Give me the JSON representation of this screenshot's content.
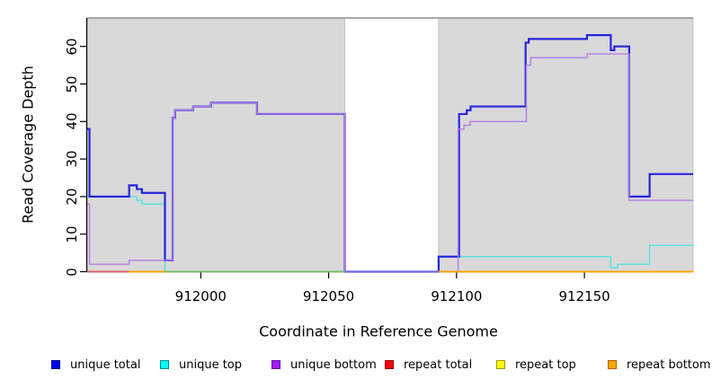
{
  "figure": {
    "background": "#ffffff",
    "panel_fill": "#d9d9d9",
    "panel_edge": "#c4c4c4",
    "panel_top_border": "#8f8f8f",
    "axis_color": "#000000"
  },
  "chart_data": {
    "type": "line",
    "title": "",
    "xlabel": "Coordinate in Reference Genome",
    "ylabel": "Read Coverage Depth",
    "xlim": [
      911955.6,
      912192.5
    ],
    "ylim": [
      0,
      67.5
    ],
    "x_ticks": [
      912000,
      912050,
      912100,
      912150
    ],
    "y_ticks": [
      0,
      10,
      20,
      30,
      40,
      50,
      60
    ],
    "grid": false,
    "legend_position": "bottom",
    "panel_regions": [
      [
        911955.6,
        912056.3
      ],
      [
        912093,
        912192.5
      ]
    ],
    "gap_region": [
      912056.3,
      912093
    ],
    "series": [
      {
        "name": "unique total",
        "color": "#2525dd",
        "line_width": 2.2,
        "steps": [
          [
            911955.6,
            38
          ],
          [
            911956.5,
            20
          ],
          [
            911972,
            23
          ],
          [
            911975,
            22
          ],
          [
            911977,
            21
          ],
          [
            911986,
            3
          ],
          [
            911989,
            41
          ],
          [
            911990,
            43
          ],
          [
            911997,
            44
          ],
          [
            912004,
            45
          ],
          [
            912022,
            42
          ],
          [
            912056.3,
            0
          ],
          [
            912093,
            4
          ],
          [
            912101,
            42
          ],
          [
            912104,
            43
          ],
          [
            912105.5,
            44
          ],
          [
            912127,
            61
          ],
          [
            912128.2,
            62
          ],
          [
            912151,
            63
          ],
          [
            912160.3,
            59
          ],
          [
            912161.7,
            60
          ],
          [
            912167.5,
            20
          ],
          [
            912175.5,
            26
          ],
          [
            912192.5,
            26
          ]
        ]
      },
      {
        "name": "unique top",
        "color": "#45e2e6",
        "line_width": 1.3,
        "steps": [
          [
            911955.6,
            20
          ],
          [
            911975,
            19
          ],
          [
            911977,
            18
          ],
          [
            911986,
            0
          ],
          [
            912093,
            4
          ],
          [
            912160.3,
            1
          ],
          [
            912163,
            2
          ],
          [
            912175.5,
            7
          ],
          [
            912192.5,
            7
          ]
        ]
      },
      {
        "name": "unique bottom",
        "color": "#b77ce8",
        "line_width": 1.4,
        "steps": [
          [
            911955.6,
            18
          ],
          [
            911956.5,
            2
          ],
          [
            911972,
            3
          ],
          [
            911989,
            41
          ],
          [
            911990,
            43
          ],
          [
            911997,
            44
          ],
          [
            912004,
            45
          ],
          [
            912022,
            42
          ],
          [
            912056.3,
            0
          ],
          [
            912100.6,
            38
          ],
          [
            912102.9,
            39
          ],
          [
            912105.3,
            40
          ],
          [
            912127.3,
            55
          ],
          [
            912129,
            57
          ],
          [
            912151,
            58
          ],
          [
            912167.5,
            19
          ],
          [
            912192.5,
            19
          ]
        ]
      },
      {
        "name": "repeat total",
        "color": "#e02020",
        "line_width": 1.4,
        "steps": [
          [
            911955.6,
            0
          ],
          [
            912192.5,
            0
          ]
        ]
      },
      {
        "name": "repeat top",
        "color": "#ffff00",
        "line_width": 1.4,
        "steps": [
          [
            911955.6,
            0
          ],
          [
            912192.5,
            0
          ]
        ]
      },
      {
        "name": "repeat bottom",
        "color": "#ffa500",
        "line_width": 1.5,
        "steps": [
          [
            911955.6,
            0
          ],
          [
            912192.5,
            0
          ]
        ]
      }
    ],
    "zero_line_overlays": [
      {
        "from": 911955.6,
        "to": 911972,
        "color": "#d85878"
      },
      {
        "from": 911972,
        "to": 911986,
        "color": "#ffa500"
      },
      {
        "from": 911986,
        "to": 912056.3,
        "color": "#68c068"
      },
      {
        "from": 912056.3,
        "to": 912093,
        "color": "#7468e0"
      },
      {
        "from": 912093,
        "to": 912192.5,
        "color": "#ffa500"
      }
    ]
  },
  "legend": {
    "items": [
      {
        "label": "unique total",
        "color": "#0000ee",
        "border": "#000080"
      },
      {
        "label": "unique top",
        "color": "#00ffff",
        "border": "#008b8b"
      },
      {
        "label": "unique bottom",
        "color": "#a020f0",
        "border": "#6a0dad"
      },
      {
        "label": "repeat total",
        "color": "#ff0000",
        "border": "#8b0000"
      },
      {
        "label": "repeat top",
        "color": "#ffff00",
        "border": "#9a9a00"
      },
      {
        "label": "repeat bottom",
        "color": "#ffa500",
        "border": "#b06000"
      }
    ]
  }
}
